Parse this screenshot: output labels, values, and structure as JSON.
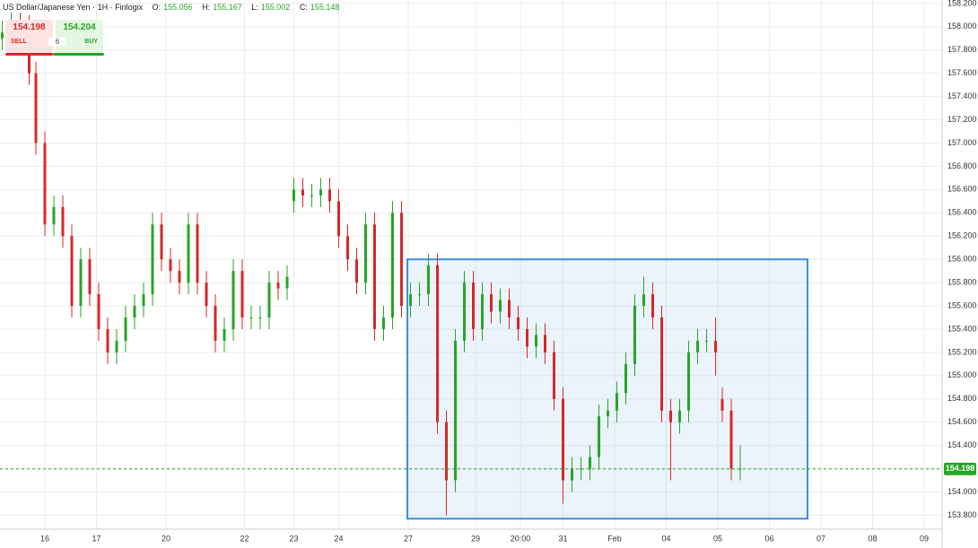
{
  "header": {
    "symbol": "US Dollar/Japanese Yen · 1H · Finlogix",
    "o_label": "O:",
    "o": 155.056,
    "h_label": "H:",
    "h": 155.167,
    "l_label": "L:",
    "l": 155.002,
    "c_label": "C:",
    "c": 155.148
  },
  "trade_panel": {
    "sell_price": 154.198,
    "sell_label": "SELL",
    "quantity": 6,
    "buy_price": 154.204,
    "buy_label": "BUY"
  },
  "chart_data": {
    "type": "candlestick",
    "up_color": "#26a626",
    "down_color": "#d62828",
    "grid": true,
    "xlim": [
      0,
      420
    ],
    "ylim": [
      153.68,
      158.23
    ],
    "xticks": [
      {
        "value": 20,
        "label": "16"
      },
      {
        "value": 43,
        "label": "17"
      },
      {
        "value": 74,
        "label": "20"
      },
      {
        "value": 109,
        "label": "22"
      },
      {
        "value": 131,
        "label": "23"
      },
      {
        "value": 151,
        "label": "24"
      },
      {
        "value": 182,
        "label": "27"
      },
      {
        "value": 212,
        "label": "29"
      },
      {
        "value": 232,
        "label": "20:00"
      },
      {
        "value": 251,
        "label": "31"
      },
      {
        "value": 274,
        "label": "Feb"
      },
      {
        "value": 297,
        "label": "04"
      },
      {
        "value": 320,
        "label": "05"
      },
      {
        "value": 343,
        "label": "06"
      },
      {
        "value": 366,
        "label": "07"
      },
      {
        "value": 389,
        "label": "08"
      },
      {
        "value": 412,
        "label": "09"
      }
    ],
    "yticks": [
      {
        "value": 158.2,
        "label": "158.200"
      },
      {
        "value": 158.0,
        "label": "158.000"
      },
      {
        "value": 157.8,
        "label": "157.800"
      },
      {
        "value": 157.6,
        "label": "157.600"
      },
      {
        "value": 157.4,
        "label": "157.400"
      },
      {
        "value": 157.2,
        "label": "157.200"
      },
      {
        "value": 157.0,
        "label": "157.000"
      },
      {
        "value": 156.8,
        "label": "156.800"
      },
      {
        "value": 156.6,
        "label": "156.600"
      },
      {
        "value": 156.4,
        "label": "156.400"
      },
      {
        "value": 156.2,
        "label": "156.200"
      },
      {
        "value": 156.0,
        "label": "156.000"
      },
      {
        "value": 155.8,
        "label": "155.800"
      },
      {
        "value": 155.6,
        "label": "155.600"
      },
      {
        "value": 155.4,
        "label": "155.400"
      },
      {
        "value": 155.2,
        "label": "155.200"
      },
      {
        "value": 155.0,
        "label": "155.000"
      },
      {
        "value": 154.8,
        "label": "154.800"
      },
      {
        "value": 154.6,
        "label": "154.600"
      },
      {
        "value": 154.4,
        "label": "154.400"
      },
      {
        "value": 154.2,
        "label": "154.200"
      },
      {
        "value": 154.0,
        "label": "154.000"
      },
      {
        "value": 153.8,
        "label": "153.800"
      }
    ],
    "x": [
      1,
      5,
      9,
      13,
      16,
      20,
      24,
      28,
      32,
      36,
      40,
      44,
      48,
      52,
      56,
      60,
      64,
      68,
      72,
      76,
      80,
      84,
      88,
      92,
      96,
      100,
      104,
      108,
      112,
      116,
      120,
      124,
      128,
      131,
      135,
      139,
      143,
      147,
      151,
      155,
      159,
      163,
      167,
      171,
      175,
      179,
      183,
      187,
      191,
      195,
      199,
      203,
      207,
      211,
      215,
      219,
      223,
      227,
      231,
      235,
      239,
      243,
      247,
      251,
      255,
      259,
      263,
      267,
      271,
      275,
      279,
      283,
      287,
      291,
      295,
      299,
      303,
      307,
      311,
      315,
      319,
      322,
      326,
      330
    ],
    "open": [
      157.9,
      157.95,
      158.02,
      158.0,
      157.6,
      157.0,
      156.3,
      156.45,
      156.2,
      155.6,
      156.0,
      155.7,
      155.4,
      155.2,
      155.3,
      155.5,
      155.6,
      155.7,
      156.3,
      156.0,
      155.9,
      155.8,
      156.3,
      155.8,
      155.6,
      155.3,
      155.4,
      155.9,
      155.5,
      155.5,
      155.5,
      155.8,
      155.75,
      156.5,
      156.6,
      156.55,
      156.55,
      156.6,
      156.5,
      156.2,
      156.0,
      155.8,
      156.3,
      155.4,
      155.5,
      156.4,
      155.6,
      155.7,
      155.7,
      155.95,
      154.6,
      154.1,
      155.3,
      155.8,
      155.4,
      155.7,
      155.55,
      155.65,
      155.5,
      155.4,
      155.25,
      155.35,
      155.2,
      154.8,
      154.1,
      154.2,
      154.2,
      154.3,
      154.65,
      154.7,
      154.85,
      155.1,
      155.6,
      155.7,
      155.5,
      154.7,
      154.6,
      154.7,
      155.2,
      155.3,
      155.3,
      154.8,
      154.7,
      154.2
    ],
    "high": [
      158.05,
      158.12,
      158.12,
      158.1,
      157.7,
      157.1,
      156.55,
      156.55,
      156.3,
      156.1,
      156.1,
      155.8,
      155.5,
      155.4,
      155.6,
      155.7,
      155.8,
      156.4,
      156.4,
      156.1,
      156.0,
      156.4,
      156.4,
      155.9,
      155.7,
      155.5,
      156.0,
      156.0,
      155.6,
      155.6,
      155.9,
      155.9,
      155.95,
      156.7,
      156.7,
      156.65,
      156.7,
      156.7,
      156.6,
      156.3,
      156.1,
      156.4,
      156.4,
      155.6,
      156.5,
      156.5,
      155.8,
      155.8,
      156.05,
      156.05,
      154.7,
      155.4,
      155.9,
      155.9,
      155.8,
      155.8,
      155.75,
      155.75,
      155.6,
      155.5,
      155.45,
      155.45,
      155.3,
      154.9,
      154.3,
      154.3,
      154.4,
      154.75,
      154.8,
      154.95,
      155.2,
      155.7,
      155.85,
      155.8,
      155.6,
      154.8,
      154.8,
      155.3,
      155.4,
      155.4,
      155.5,
      154.9,
      154.8,
      154.4
    ],
    "low": [
      157.8,
      157.85,
      157.9,
      157.5,
      156.9,
      156.2,
      156.2,
      156.1,
      155.5,
      155.5,
      155.6,
      155.3,
      155.1,
      155.1,
      155.2,
      155.4,
      155.5,
      155.6,
      155.9,
      155.8,
      155.7,
      155.7,
      155.7,
      155.5,
      155.2,
      155.2,
      155.3,
      155.4,
      155.4,
      155.4,
      155.4,
      155.65,
      155.65,
      156.4,
      156.45,
      156.45,
      156.45,
      156.4,
      156.1,
      155.9,
      155.7,
      155.7,
      155.3,
      155.3,
      155.4,
      155.5,
      155.5,
      155.6,
      155.6,
      154.5,
      153.8,
      154.0,
      155.2,
      155.3,
      155.3,
      155.45,
      155.45,
      155.4,
      155.3,
      155.15,
      155.15,
      155.1,
      154.7,
      153.9,
      154.0,
      154.1,
      154.1,
      154.2,
      154.55,
      154.6,
      154.75,
      155.0,
      155.5,
      155.4,
      154.6,
      154.1,
      154.5,
      154.6,
      155.1,
      155.2,
      155.0,
      154.6,
      154.1,
      154.1
    ],
    "close": [
      157.95,
      158.02,
      158.0,
      157.6,
      157.0,
      156.3,
      156.45,
      156.2,
      155.6,
      156.0,
      155.7,
      155.4,
      155.2,
      155.3,
      155.5,
      155.6,
      155.7,
      156.3,
      156.0,
      155.9,
      155.8,
      156.3,
      155.8,
      155.6,
      155.3,
      155.4,
      155.9,
      155.5,
      155.5,
      155.5,
      155.8,
      155.75,
      155.85,
      156.6,
      156.55,
      156.55,
      156.6,
      156.5,
      156.2,
      156.0,
      155.8,
      156.3,
      155.4,
      155.5,
      156.4,
      155.6,
      155.7,
      155.7,
      155.95,
      154.6,
      154.1,
      155.3,
      155.8,
      155.4,
      155.7,
      155.55,
      155.65,
      155.5,
      155.4,
      155.25,
      155.35,
      155.2,
      154.8,
      154.1,
      154.2,
      154.2,
      154.3,
      154.65,
      154.7,
      154.85,
      155.1,
      155.6,
      155.7,
      155.5,
      154.7,
      154.6,
      154.7,
      155.2,
      155.3,
      155.3,
      155.2,
      154.7,
      154.2,
      154.2
    ],
    "last_price": 154.198,
    "last_price_color": "#26a626",
    "rectangle": {
      "x": [
        181.6,
        360
      ],
      "y": [
        156.0,
        153.77
      ],
      "color": "#3d8ee0"
    }
  }
}
